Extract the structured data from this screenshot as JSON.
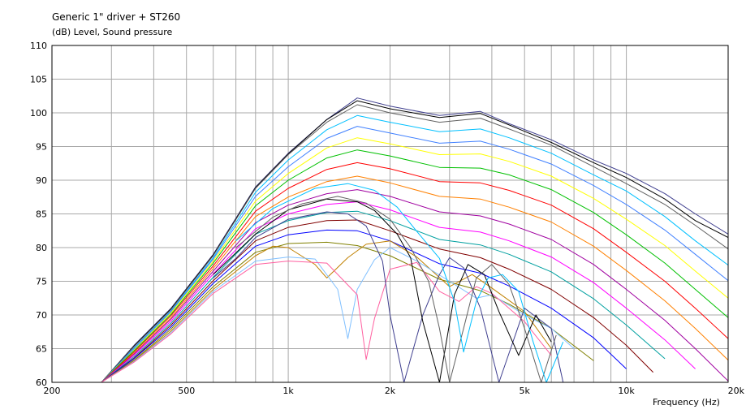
{
  "chart_data": {
    "type": "line",
    "title": "Generic 1\" driver + ST260",
    "ylabel": "(dB)  Level, Sound pressure",
    "xlabel": "Frequency  (Hz)",
    "x_scale": "log",
    "xlim": [
      200,
      20000
    ],
    "ylim": [
      60,
      110
    ],
    "grid": true,
    "x_tick_labels": [
      {
        "value": 200,
        "label": "200"
      },
      {
        "value": 500,
        "label": "500"
      },
      {
        "value": 1000,
        "label": "1k"
      },
      {
        "value": 2000,
        "label": "2k"
      },
      {
        "value": 5000,
        "label": "5k"
      },
      {
        "value": 10000,
        "label": "10k"
      },
      {
        "value": 20000,
        "label": "20k"
      }
    ],
    "x_gridlines": [
      300,
      400,
      500,
      600,
      700,
      800,
      900,
      1000,
      2000,
      3000,
      4000,
      5000,
      6000,
      7000,
      8000,
      9000,
      10000
    ],
    "y_ticks": [
      60,
      65,
      70,
      75,
      80,
      85,
      90,
      95,
      100,
      105,
      110
    ],
    "series_colors": [
      "#3f3f8f",
      "#000000",
      "#606060",
      "#00c0ff",
      "#4080ff",
      "#ffff00",
      "#00c000",
      "#ff0000",
      "#ff8000",
      "#a000a0",
      "#ff00ff",
      "#00a0a0",
      "#800000",
      "#0000ff",
      "#808000",
      "#c08000",
      "#80c0ff",
      "#ff60a0"
    ],
    "series": [
      {
        "x": [
          280,
          350,
          450,
          600,
          800,
          1000,
          1300,
          1600,
          2000,
          2800,
          3700,
          4500,
          6000,
          8000,
          10000,
          13000,
          16000,
          20000
        ],
        "values": [
          60,
          65.5,
          71,
          79,
          89,
          94,
          99,
          102.2,
          101,
          99.6,
          100.2,
          98.4,
          96,
          93,
          91,
          88,
          85,
          82
        ]
      },
      {
        "x": [
          280,
          350,
          450,
          600,
          800,
          1000,
          1300,
          1600,
          2000,
          2800,
          3700,
          4500,
          6000,
          8000,
          10000,
          13000,
          16000,
          20000
        ],
        "values": [
          60,
          65.4,
          70.9,
          78.9,
          88.9,
          93.9,
          99,
          101.8,
          100.6,
          99.3,
          99.9,
          98.2,
          95.6,
          92.6,
          90.4,
          87.2,
          84,
          81.5
        ]
      },
      {
        "x": [
          280,
          350,
          450,
          600,
          800,
          1000,
          1300,
          1600,
          2000,
          2800,
          3700,
          4500,
          6000,
          8000,
          10000,
          13000,
          16000,
          20000
        ],
        "values": [
          60,
          65.3,
          70.8,
          78.8,
          88.8,
          93.8,
          98.6,
          101.2,
          100,
          98.6,
          99.2,
          97.6,
          95.2,
          92,
          89.5,
          86.4,
          83.3,
          79.8
        ]
      },
      {
        "x": [
          280,
          350,
          450,
          600,
          800,
          1000,
          1300,
          1600,
          2000,
          2800,
          3700,
          4500,
          6000,
          8000,
          10000,
          13000,
          16000,
          20000
        ],
        "values": [
          60,
          65.1,
          70.6,
          78.5,
          88.2,
          93,
          97.5,
          99.6,
          98.6,
          97.2,
          97.6,
          96.3,
          94,
          90.8,
          88.4,
          84.6,
          81,
          77.4
        ]
      },
      {
        "x": [
          280,
          350,
          450,
          600,
          800,
          1000,
          1300,
          1600,
          2000,
          2800,
          3700,
          4500,
          6000,
          8000,
          10000,
          13000,
          16000,
          20000
        ],
        "values": [
          60,
          65,
          70.5,
          78.3,
          87.6,
          92,
          96.2,
          98,
          97,
          95.5,
          95.8,
          94.6,
          92.4,
          89.2,
          86.4,
          82.6,
          79,
          75.1
        ]
      },
      {
        "x": [
          280,
          350,
          450,
          600,
          800,
          1000,
          1300,
          1600,
          2000,
          2800,
          3700,
          4500,
          6000,
          8000,
          10000,
          13000,
          16000,
          20000
        ],
        "values": [
          60,
          64.8,
          70.3,
          78,
          86.9,
          91,
          94.8,
          96.3,
          95.4,
          93.8,
          93.9,
          92.8,
          90.6,
          87.3,
          84.2,
          80.3,
          76.5,
          72.5
        ]
      },
      {
        "x": [
          280,
          350,
          450,
          600,
          800,
          1000,
          1300,
          1600,
          2000,
          2800,
          3700,
          4500,
          6000,
          8000,
          10000,
          13000,
          16000,
          20000
        ],
        "values": [
          60,
          64.7,
          70.1,
          77.7,
          86.2,
          90,
          93.3,
          94.5,
          93.6,
          91.9,
          91.8,
          90.8,
          88.6,
          85.2,
          81.9,
          77.7,
          73.8,
          69.6
        ]
      },
      {
        "x": [
          280,
          350,
          450,
          600,
          800,
          1000,
          1300,
          1600,
          2000,
          2800,
          3700,
          4500,
          6000,
          8000,
          10000,
          13000,
          16000,
          20000
        ],
        "values": [
          60,
          64.5,
          69.9,
          77.3,
          85.4,
          88.8,
          91.6,
          92.6,
          91.7,
          89.8,
          89.6,
          88.5,
          86.3,
          82.8,
          79.3,
          75,
          71,
          66.5
        ]
      },
      {
        "x": [
          280,
          350,
          450,
          600,
          800,
          1000,
          1300,
          1600,
          2000,
          2800,
          3700,
          4500,
          6000,
          8000,
          10000,
          13000,
          16000,
          20000
        ],
        "values": [
          60,
          64.3,
          69.6,
          76.9,
          84.6,
          87.5,
          89.8,
          90.6,
          89.6,
          87.6,
          87.2,
          86,
          83.8,
          80.2,
          76.6,
          72.1,
          68,
          63.3
        ]
      },
      {
        "x": [
          280,
          350,
          450,
          600,
          800,
          1000,
          1300,
          1600,
          2000,
          2800,
          3700,
          4500,
          6000,
          8000,
          10000,
          13000,
          16000,
          20000
        ],
        "values": [
          60,
          64.2,
          69.4,
          76.5,
          83.7,
          86.3,
          88,
          88.6,
          87.6,
          85.3,
          84.7,
          83.5,
          81.2,
          77.5,
          73.8,
          69.2,
          65,
          60.2
        ]
      },
      {
        "x": [
          280,
          350,
          450,
          600,
          800,
          1000,
          1300,
          1600,
          2000,
          2800,
          3700,
          4500,
          6000,
          8000,
          10000,
          13000,
          16000
        ],
        "values": [
          60,
          64,
          69.1,
          76.1,
          82.8,
          85,
          86.4,
          86.8,
          85.6,
          83,
          82.3,
          81,
          78.6,
          74.8,
          71,
          66.3,
          62
        ]
      },
      {
        "x": [
          280,
          350,
          450,
          600,
          800,
          1000,
          1300,
          1600,
          2000,
          2800,
          3700,
          4500,
          6000,
          8000,
          10000,
          13000
        ],
        "values": [
          60,
          63.8,
          68.8,
          75.6,
          82,
          84,
          85.2,
          85.4,
          84,
          81.2,
          80.4,
          79,
          76.4,
          72.4,
          68.5,
          63.5
        ]
      },
      {
        "x": [
          280,
          350,
          450,
          600,
          800,
          1000,
          1300,
          1600,
          2000,
          2800,
          3700,
          4500,
          6000,
          8000,
          10000,
          12000
        ],
        "values": [
          60,
          63.6,
          68.5,
          75.1,
          81,
          83,
          84,
          84.1,
          82.5,
          79.8,
          78.5,
          76.8,
          73.8,
          69.6,
          65.5,
          61.5
        ]
      },
      {
        "x": [
          280,
          350,
          450,
          600,
          800,
          1000,
          1300,
          1600,
          2000,
          2800,
          3700,
          4500,
          6000,
          8000,
          10000
        ],
        "values": [
          60,
          63.5,
          68.2,
          74.7,
          80.2,
          81.9,
          82.6,
          82.5,
          81,
          77.6,
          76.2,
          74.3,
          71,
          66.6,
          62
        ]
      },
      {
        "x": [
          280,
          350,
          450,
          600,
          800,
          1000,
          1300,
          1600,
          2000,
          2800,
          3700,
          4500,
          6000,
          8000
        ],
        "values": [
          60,
          63.3,
          67.9,
          74.2,
          79.3,
          80.6,
          80.8,
          80.3,
          78.8,
          75.3,
          73.6,
          71.6,
          68,
          63.2
        ]
      },
      {
        "x": [
          280,
          350,
          450,
          600,
          800,
          900,
          1000,
          1200,
          1300,
          1500,
          1700,
          2000,
          2400,
          3000,
          3500,
          4000,
          5000,
          6000
        ],
        "values": [
          60,
          63.2,
          67.6,
          73.8,
          78.8,
          80.2,
          80,
          77.5,
          75.5,
          78.5,
          80.5,
          81,
          78.6,
          74.2,
          76,
          74,
          70.5,
          65
        ]
      },
      {
        "x": [
          280,
          350,
          450,
          600,
          800,
          1000,
          1200,
          1400,
          1500,
          1600,
          1800,
          2000,
          2400,
          3000,
          3600,
          4000,
          5000,
          6000,
          7000
        ],
        "values": [
          60,
          63.1,
          67.4,
          73.5,
          78,
          78.6,
          78.3,
          73.8,
          66.5,
          73.8,
          78.2,
          80,
          78,
          75,
          72.5,
          73,
          70,
          68,
          65
        ]
      },
      {
        "x": [
          280,
          350,
          450,
          600,
          800,
          1000,
          1300,
          1600,
          1700,
          1800,
          2000,
          2400,
          2800,
          3200,
          3600,
          4000,
          5000,
          6000
        ],
        "values": [
          60,
          63,
          67.2,
          73.2,
          77.5,
          78,
          77.7,
          73,
          63.4,
          69.5,
          76.8,
          77.8,
          73.5,
          72,
          74.2,
          73.2,
          69,
          64
        ]
      },
      {
        "x": [
          600,
          700,
          800,
          1000,
          1300,
          1500,
          1700,
          1900,
          2000,
          2200,
          2500,
          2800,
          3000,
          3300,
          3700,
          4200,
          5000,
          6000,
          6500
        ],
        "values": [
          75.5,
          78.4,
          81.5,
          84.2,
          85.3,
          85,
          83.2,
          78,
          70,
          60,
          70,
          76,
          78.5,
          77,
          71,
          60,
          71,
          68,
          60
        ]
      },
      {
        "x": [
          600,
          800,
          1000,
          1300,
          1600,
          1800,
          2100,
          2300,
          2500,
          2800,
          3100,
          3400,
          3800,
          4200,
          4800,
          5400,
          6000
        ],
        "values": [
          76,
          82,
          85.6,
          87.2,
          86.8,
          85.5,
          82,
          78.5,
          69,
          60,
          73,
          77.5,
          76,
          70.5,
          64,
          70,
          66
        ]
      },
      {
        "x": [
          700,
          900,
          1100,
          1400,
          1700,
          2000,
          2300,
          2600,
          2800,
          3000,
          3300,
          3600,
          4000,
          4500,
          5000,
          5600,
          6200
        ],
        "values": [
          80,
          84.5,
          86.5,
          87.6,
          86.6,
          84.2,
          80,
          75,
          68,
          60,
          68,
          75.5,
          77.5,
          74.5,
          68,
          60,
          67
        ]
      },
      {
        "x": [
          700,
          900,
          1200,
          1500,
          1800,
          2100,
          2400,
          2800,
          3100,
          3300,
          3600,
          3900,
          4300,
          4800,
          5300,
          5800,
          6500
        ],
        "values": [
          81,
          85.8,
          88.8,
          89.5,
          88.5,
          86,
          82.4,
          78.4,
          72,
          64.5,
          72,
          75.5,
          76,
          73.5,
          66,
          60,
          66
        ]
      }
    ]
  }
}
